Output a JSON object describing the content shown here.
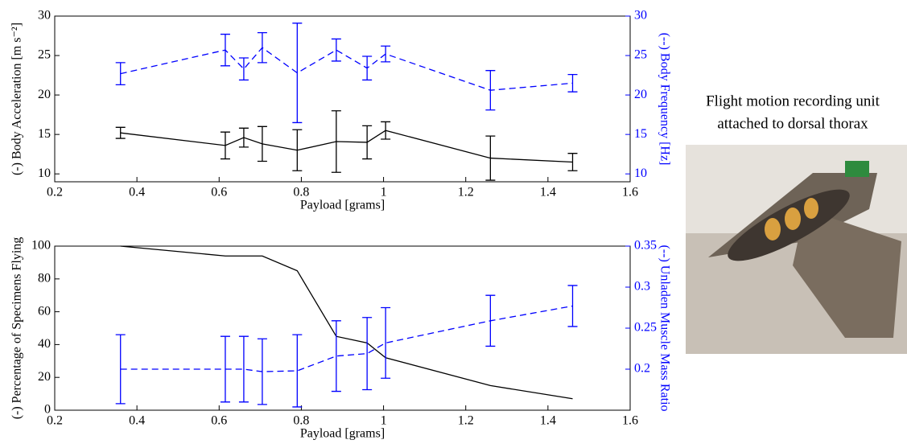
{
  "chart_data": [
    {
      "type": "line",
      "xlabel": "Payload [grams]",
      "ylabel": "(-) Body Acceleration [m s⁻²]",
      "y2label": "(--) Body Frequency [Hz]",
      "x": [
        0.36,
        0.615,
        0.66,
        0.705,
        0.79,
        0.885,
        0.96,
        1.005,
        1.26,
        1.46
      ],
      "xlim": [
        0.2,
        1.6
      ],
      "xticks": [
        0.2,
        0.4,
        0.6,
        0.8,
        1,
        1.2,
        1.4,
        1.6
      ],
      "ylim": [
        9,
        30
      ],
      "yticks": [
        10,
        15,
        20,
        25,
        30
      ],
      "y2lim": [
        9,
        30
      ],
      "y2ticks": [
        10,
        15,
        20,
        25,
        30
      ],
      "series": [
        {
          "color": "#000000",
          "line_style": "solid",
          "values": [
            15.2,
            13.6,
            14.6,
            13.8,
            13.0,
            14.1,
            14.0,
            15.5,
            12.0,
            11.5
          ],
          "errors": [
            0.7,
            1.7,
            1.2,
            2.2,
            2.6,
            3.9,
            2.1,
            1.1,
            2.8,
            1.1
          ]
        },
        {
          "color": "#0000ff",
          "line_style": "dashed",
          "axis": "y2",
          "values": [
            22.7,
            25.7,
            23.3,
            26.0,
            22.8,
            25.7,
            23.4,
            25.2,
            20.6,
            21.5
          ],
          "errors": [
            1.4,
            2.0,
            1.4,
            1.9,
            6.3,
            1.4,
            1.5,
            1.0,
            2.5,
            1.1
          ]
        }
      ]
    },
    {
      "type": "line",
      "xlabel": "Payload [grams]",
      "ylabel": "(-) Percentage of Specimens Flying",
      "y2label": "(--) Unladen Muscle Mass Ratio",
      "x": [
        0.36,
        0.615,
        0.66,
        0.705,
        0.79,
        0.885,
        0.96,
        1.005,
        1.26,
        1.46
      ],
      "xlim": [
        0.2,
        1.6
      ],
      "xticks": [
        0.2,
        0.4,
        0.6,
        0.8,
        1,
        1.2,
        1.4,
        1.6
      ],
      "ylim": [
        0,
        100
      ],
      "yticks": [
        0,
        20,
        40,
        60,
        80,
        100
      ],
      "y2lim": [
        0.15,
        0.35
      ],
      "y2ticks": [
        0.2,
        0.25,
        0.3,
        0.35
      ],
      "series": [
        {
          "color": "#000000",
          "line_style": "solid",
          "values": [
            100,
            94,
            94,
            94,
            85,
            45,
            41,
            32,
            15,
            7
          ]
        },
        {
          "color": "#0000ff",
          "line_style": "dashed",
          "axis": "y2",
          "values": [
            0.2,
            0.2,
            0.2,
            0.197,
            0.198,
            0.216,
            0.219,
            0.232,
            0.259,
            0.277
          ],
          "errors": [
            0.042,
            0.04,
            0.04,
            0.04,
            0.044,
            0.043,
            0.044,
            0.043,
            0.031,
            0.025
          ]
        }
      ]
    }
  ],
  "photo_caption": [
    "Flight motion recording unit",
    "attached to dorsal thorax"
  ]
}
